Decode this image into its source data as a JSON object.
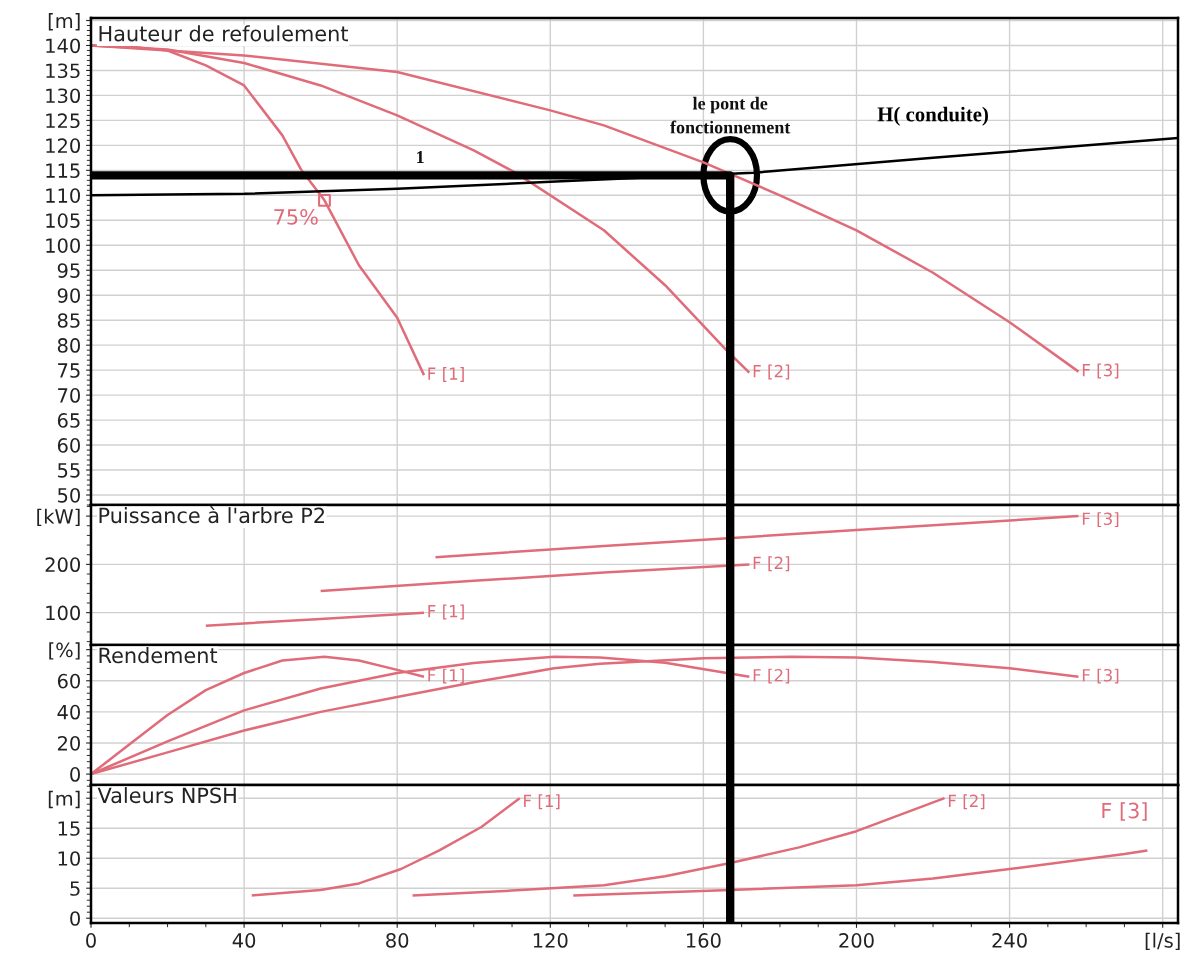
{
  "chart_data": [
    {
      "type": "line",
      "title": "Hauteur de refoulement",
      "xlim": [
        0,
        284
      ],
      "xticks": [
        0,
        40,
        80,
        120,
        160,
        200,
        240,
        280
      ],
      "ylim": [
        48,
        145.5
      ],
      "yticks": [
        50,
        55,
        60,
        65,
        70,
        75,
        80,
        85,
        90,
        95,
        100,
        105,
        110,
        115,
        120,
        125,
        130,
        135,
        140,
        {
          "value": 145,
          "label": "[m]"
        }
      ],
      "tick_labels": "y",
      "grid": true,
      "legend": false,
      "series": [
        {
          "name": "F [1]",
          "color": "#e06c7a",
          "x": [
            0,
            10,
            20,
            30,
            40,
            50,
            55,
            61,
            70,
            80,
            87
          ],
          "values": [
            140,
            139.8,
            139,
            136,
            132,
            122,
            115,
            109,
            96,
            85.5,
            74
          ]
        },
        {
          "name": "F [2]",
          "color": "#e06c7a",
          "x": [
            0,
            20,
            40,
            60,
            80,
            100,
            111,
            134,
            150,
            166,
            172
          ],
          "values": [
            140,
            139.2,
            136.5,
            132,
            126,
            119,
            114.5,
            103,
            92,
            79,
            74.5
          ]
        },
        {
          "name": "F [3]",
          "color": "#e06c7a",
          "x": [
            0,
            40,
            80,
            120,
            134,
            160,
            180,
            200,
            220,
            240,
            258
          ],
          "values": [
            140,
            138,
            134.7,
            127,
            124,
            116.6,
            110,
            103,
            94.5,
            84.6,
            74.7
          ]
        },
        {
          "name": "H( conduite)",
          "color": "#000000",
          "x": [
            0,
            40,
            80,
            120,
            173,
            220,
            284
          ],
          "values": [
            110,
            110.3,
            111.3,
            112.7,
            114.5,
            117.5,
            121.5
          ]
        },
        {
          "type": "scatter",
          "name": "75%",
          "marker": "square",
          "color": "#e06c7a",
          "x": [
            61
          ],
          "values": [
            109
          ]
        },
        {
          "color": "#000000",
          "x": [
            0,
            167,
            167
          ],
          "values": [
            114,
            114,
            48
          ]
        }
      ],
      "annotations": [
        {
          "text": "1",
          "x": 86,
          "y": 114
        },
        {
          "text": "le pont de\nfonctionnement",
          "x": 167,
          "y": 114
        }
      ]
    },
    {
      "type": "line",
      "title": "Puissance à l'arbre P2",
      "xlim": [
        0,
        284
      ],
      "xticks": [
        0,
        40,
        80,
        120,
        160,
        200,
        240,
        280
      ],
      "ylim": [
        33,
        323
      ],
      "yticks": [
        100,
        200,
        {
          "value": 300,
          "label": "[kW]"
        }
      ],
      "tick_labels": "y",
      "grid": true,
      "legend": false,
      "series": [
        {
          "name": "F [1]",
          "color": "#e06c7a",
          "x": [
            30,
            60,
            87
          ],
          "values": [
            73,
            87,
            100
          ]
        },
        {
          "name": "F [2]",
          "color": "#e06c7a",
          "x": [
            60,
            100,
            134,
            172
          ],
          "values": [
            145,
            166,
            183,
            200
          ]
        },
        {
          "name": "F [3]",
          "color": "#e06c7a",
          "x": [
            90,
            134,
            200,
            258
          ],
          "values": [
            215,
            238,
            271,
            300
          ]
        }
      ],
      "ref_lines": [
        {
          "axis": "x",
          "value": 167,
          "color": "#000000"
        }
      ]
    },
    {
      "type": "line",
      "title": "Rendement",
      "xlim": [
        0,
        284
      ],
      "xticks": [
        0,
        40,
        80,
        120,
        160,
        200,
        240,
        280
      ],
      "ylim": [
        -7,
        83
      ],
      "yticks": [
        0,
        20,
        40,
        60,
        {
          "value": 80,
          "label": "[%]"
        }
      ],
      "tick_labels": "y",
      "grid": true,
      "legend": false,
      "series": [
        {
          "name": "F [1]",
          "color": "#e06c7a",
          "x": [
            0,
            10,
            20,
            30,
            40,
            50,
            61,
            70,
            80,
            87
          ],
          "values": [
            0,
            19,
            38,
            54,
            65,
            73,
            75.5,
            73,
            67,
            62.6
          ]
        },
        {
          "name": "F [2]",
          "color": "#e06c7a",
          "x": [
            0,
            20,
            40,
            60,
            80,
            100,
            121,
            133,
            150,
            172
          ],
          "values": [
            0,
            21,
            41,
            55,
            65,
            71.5,
            75.5,
            75,
            71.6,
            62.6
          ]
        },
        {
          "name": "F [3]",
          "color": "#e06c7a",
          "x": [
            0,
            20,
            40,
            60,
            81,
            100,
            121,
            133,
            160,
            183,
            200,
            220,
            240,
            258
          ],
          "values": [
            0,
            14,
            28,
            40,
            50,
            59,
            68,
            71,
            74.5,
            75.5,
            75,
            72,
            68,
            62.6
          ]
        }
      ],
      "ref_lines": [
        {
          "axis": "x",
          "value": 167,
          "color": "#000000"
        }
      ]
    },
    {
      "type": "line",
      "title": "Valeurs NPSH",
      "xlim": [
        0,
        284
      ],
      "xticks": [
        0,
        40,
        80,
        120,
        160,
        200,
        240,
        {
          "value": 280,
          "label": "[l/s]"
        }
      ],
      "ylim": [
        -0.8,
        22.2
      ],
      "yticks": [
        0,
        5,
        10,
        15,
        {
          "value": 20,
          "label": "[m]"
        }
      ],
      "grid": true,
      "legend": false,
      "series": [
        {
          "name": "F [1]",
          "color": "#e06c7a",
          "x": [
            42,
            60,
            70,
            81,
            91,
            102,
            112
          ],
          "values": [
            3.8,
            4.7,
            5.8,
            8.2,
            11.3,
            15.2,
            20
          ]
        },
        {
          "name": "F [2]",
          "color": "#e06c7a",
          "x": [
            84,
            110,
            134,
            150,
            167,
            185,
            200,
            223
          ],
          "values": [
            3.8,
            4.6,
            5.5,
            7,
            9.2,
            11.8,
            14.5,
            20
          ]
        },
        {
          "name": "F [3]",
          "color": "#e06c7a",
          "x": [
            126,
            167,
            200,
            220,
            240,
            270,
            276
          ],
          "values": [
            3.8,
            4.7,
            5.5,
            6.6,
            8.2,
            10.7,
            11.3
          ]
        }
      ],
      "ref_lines": [
        {
          "axis": "x",
          "value": 167,
          "color": "#000000"
        }
      ]
    }
  ]
}
